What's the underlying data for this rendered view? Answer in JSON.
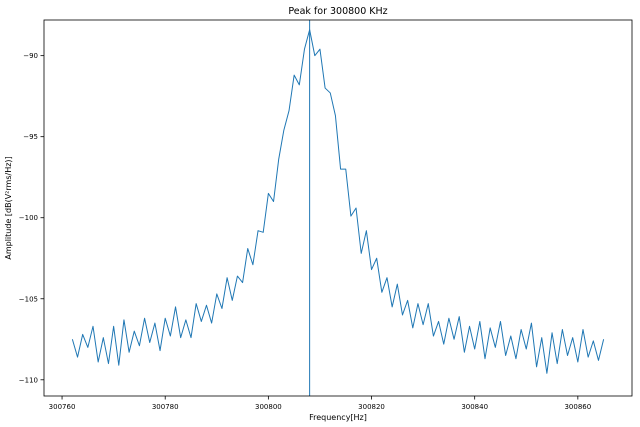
{
  "chart_data": {
    "type": "line",
    "title": "Peak for 300800 KHz",
    "xlabel": "Frequency[Hz]",
    "ylabel": "Amplitude [dB(V²rms/Hz)]",
    "line_color": "#1f77b4",
    "spine_color": "#000000",
    "background_color": "#ffffff",
    "grid": false,
    "legend_position": "none",
    "peak_marker_x": 300808,
    "x_start": 300762,
    "x_step": 1,
    "xlim": [
      300756.5,
      300870.5
    ],
    "ylim": [
      -111.0,
      -87.8
    ],
    "xticks": [
      300760,
      300780,
      300800,
      300820,
      300840,
      300860
    ],
    "yticks": [
      -90,
      -95,
      -100,
      -105,
      -110
    ],
    "values": [
      -107.5,
      -108.6,
      -107.2,
      -108.0,
      -106.7,
      -108.9,
      -107.4,
      -109.0,
      -106.7,
      -109.1,
      -106.3,
      -108.3,
      -107.0,
      -107.9,
      -106.2,
      -107.7,
      -106.5,
      -108.2,
      -106.2,
      -107.3,
      -105.5,
      -107.4,
      -106.3,
      -107.4,
      -105.3,
      -106.4,
      -105.4,
      -106.5,
      -104.7,
      -105.6,
      -103.7,
      -105.1,
      -103.6,
      -104.0,
      -101.9,
      -102.9,
      -100.8,
      -100.9,
      -98.5,
      -99.0,
      -96.4,
      -94.6,
      -93.4,
      -91.2,
      -91.8,
      -89.6,
      -88.4,
      -90.0,
      -89.6,
      -92.0,
      -92.3,
      -93.7,
      -97.0,
      -97.0,
      -99.9,
      -99.4,
      -102.2,
      -100.8,
      -103.2,
      -102.5,
      -104.6,
      -103.7,
      -105.5,
      -104.1,
      -106.0,
      -105.1,
      -106.8,
      -105.3,
      -106.6,
      -105.3,
      -107.3,
      -106.4,
      -107.8,
      -106.2,
      -107.5,
      -106.1,
      -108.3,
      -106.7,
      -108.1,
      -106.4,
      -108.7,
      -106.8,
      -108.0,
      -106.4,
      -108.5,
      -107.3,
      -108.7,
      -106.9,
      -108.1,
      -106.5,
      -109.2,
      -107.4,
      -109.6,
      -107.1,
      -109.0,
      -106.9,
      -108.5,
      -107.4,
      -108.9,
      -106.9,
      -108.6,
      -107.6,
      -108.8,
      -107.5
    ]
  }
}
